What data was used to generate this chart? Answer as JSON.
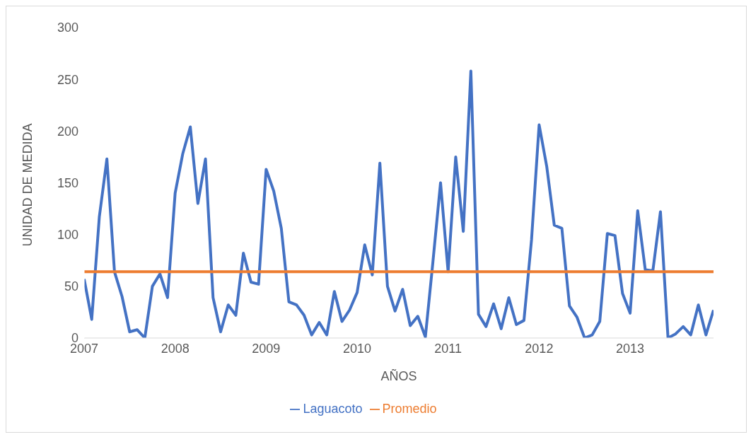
{
  "chart_data": {
    "type": "line",
    "xlabel": "AÑOS",
    "ylabel": "UNIDAD DE MEDIDA",
    "categories": [
      "2007",
      null,
      null,
      null,
      null,
      null,
      null,
      null,
      null,
      null,
      null,
      null,
      "2008",
      null,
      null,
      null,
      null,
      null,
      null,
      null,
      null,
      null,
      null,
      null,
      "2009",
      null,
      null,
      null,
      null,
      null,
      null,
      null,
      null,
      null,
      null,
      null,
      "2010",
      null,
      null,
      null,
      null,
      null,
      null,
      null,
      null,
      null,
      null,
      null,
      "2011",
      null,
      null,
      null,
      null,
      null,
      null,
      null,
      null,
      null,
      null,
      null,
      "2012",
      null,
      null,
      null,
      null,
      null,
      null,
      null,
      null,
      null,
      null,
      null,
      "2013",
      null,
      null,
      null,
      null,
      null,
      null,
      null,
      null,
      null,
      null,
      null
    ],
    "series": [
      {
        "name": "Laguacoto",
        "color": "#4472c4",
        "values": [
          57,
          18,
          117,
          173,
          64,
          40,
          6,
          8,
          0,
          50,
          62,
          39,
          140,
          178,
          204,
          130,
          173,
          39,
          6,
          32,
          22,
          82,
          54,
          52,
          163,
          142,
          106,
          35,
          32,
          22,
          3,
          15,
          3,
          45,
          16,
          27,
          44,
          90,
          61,
          169,
          50,
          26,
          47,
          12,
          21,
          1,
          74,
          150,
          64,
          175,
          103,
          258,
          23,
          11,
          33,
          9,
          39,
          13,
          17,
          95,
          206,
          166,
          109,
          106,
          31,
          20,
          0,
          3,
          16,
          101,
          99,
          43,
          24,
          123,
          66,
          65,
          122,
          0,
          4,
          11,
          3,
          32,
          3,
          27
        ]
      },
      {
        "name": "Promedio",
        "color": "#ed7d31",
        "values": [
          64,
          64,
          64,
          64,
          64,
          64,
          64,
          64,
          64,
          64,
          64,
          64,
          64,
          64,
          64,
          64,
          64,
          64,
          64,
          64,
          64,
          64,
          64,
          64,
          64,
          64,
          64,
          64,
          64,
          64,
          64,
          64,
          64,
          64,
          64,
          64,
          64,
          64,
          64,
          64,
          64,
          64,
          64,
          64,
          64,
          64,
          64,
          64,
          64,
          64,
          64,
          64,
          64,
          64,
          64,
          64,
          64,
          64,
          64,
          64,
          64,
          64,
          64,
          64,
          64,
          64,
          64,
          64,
          64,
          64,
          64,
          64,
          64,
          64,
          64,
          64,
          64,
          64,
          64,
          64,
          64,
          64,
          64,
          64
        ]
      }
    ],
    "ylim": [
      0,
      300
    ],
    "yticks": [
      0,
      50,
      100,
      150,
      200,
      250,
      300
    ],
    "grid": false,
    "legend": "bottom",
    "marker": "none",
    "line_style": "solid"
  }
}
